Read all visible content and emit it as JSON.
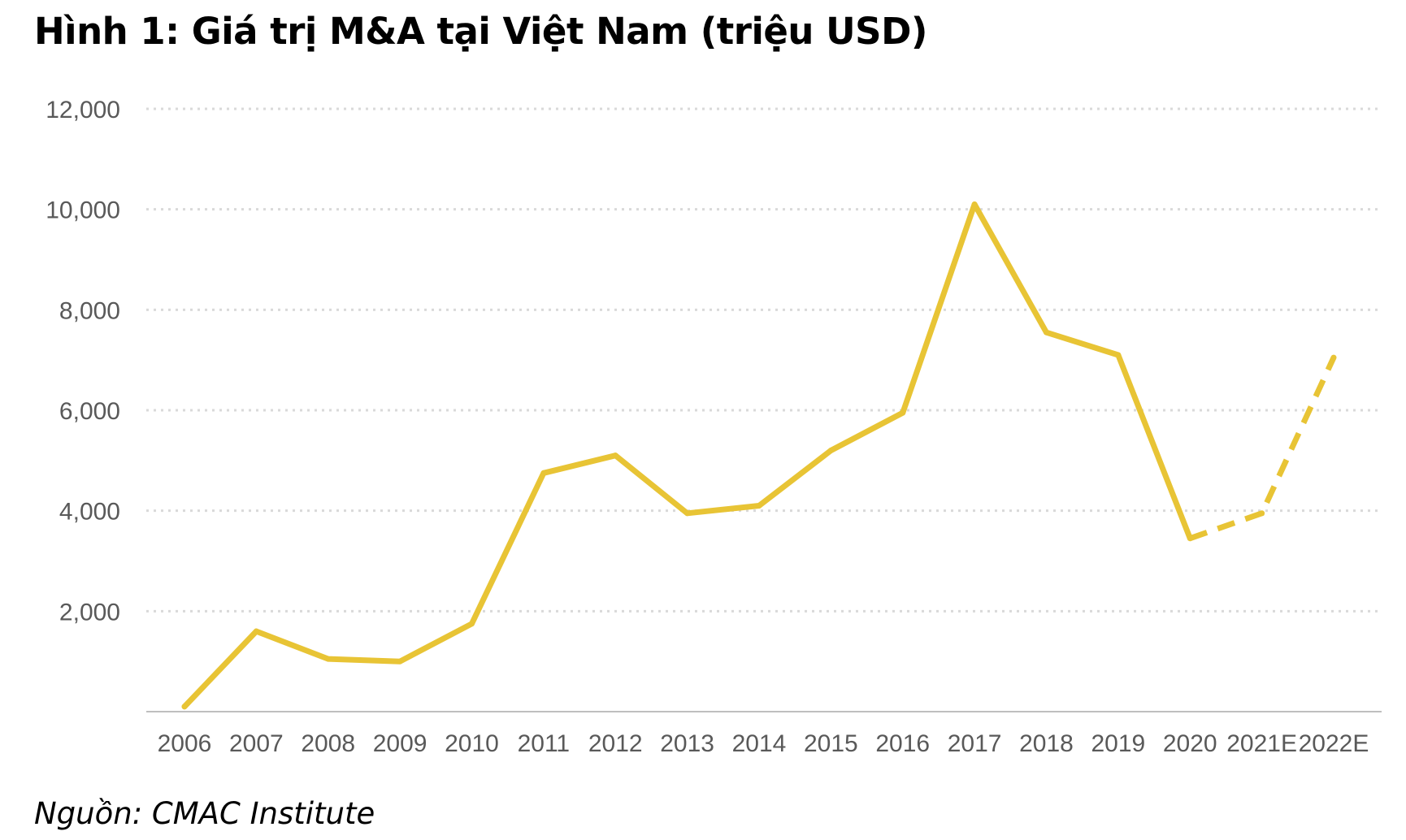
{
  "title": "Hình 1: Giá trị M&A tại Việt Nam (triệu USD)",
  "source": "Nguồn: CMAC Institute",
  "colors": {
    "line": "#E8C435",
    "grid": "#D9D9D9",
    "axis": "#BFBFBF",
    "tick_text": "#595959"
  },
  "chart_data": {
    "type": "line",
    "categories": [
      "2006",
      "2007",
      "2008",
      "2009",
      "2010",
      "2011",
      "2012",
      "2013",
      "2014",
      "2015",
      "2016",
      "2017",
      "2018",
      "2019",
      "2020",
      "2021E",
      "2022E"
    ],
    "series": [
      {
        "values": [
          100,
          1600,
          1050,
          1000,
          1750,
          4750,
          5100,
          3950,
          4100,
          5200,
          5950,
          10100,
          7550,
          7100,
          3450,
          3950,
          7050
        ],
        "style": "solid until 2020, dashed for 2021E-2022E"
      }
    ],
    "y_ticks": [
      "",
      "2,000",
      "4,000",
      "6,000",
      "8,000",
      "10,000",
      "12,000"
    ],
    "ylim": [
      0,
      12000
    ],
    "grid": true,
    "legend": "none"
  }
}
